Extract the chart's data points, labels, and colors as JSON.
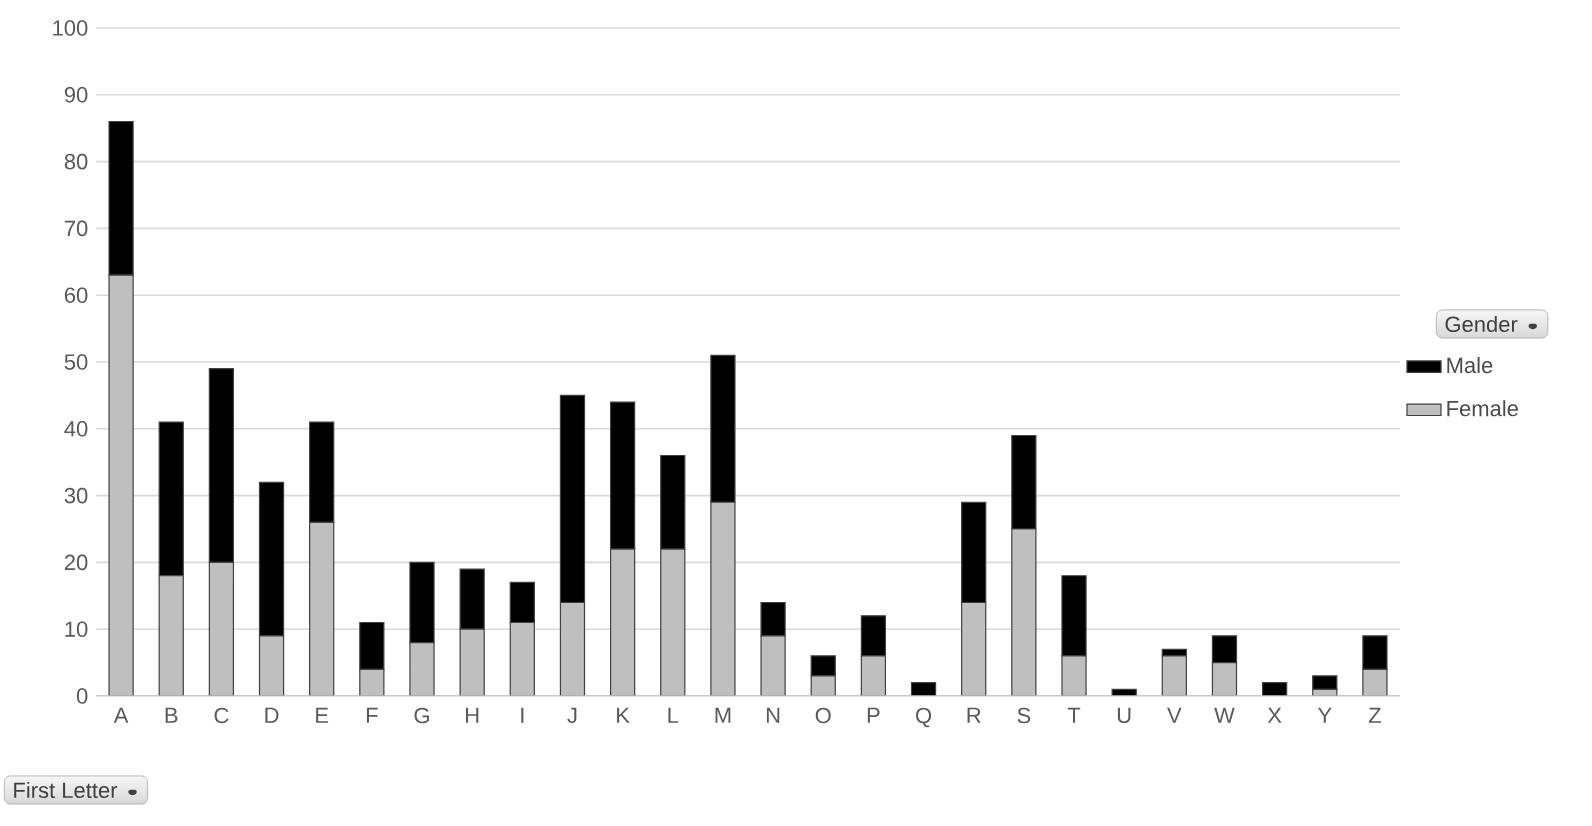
{
  "chart_data": {
    "type": "bar",
    "stacked": true,
    "annotations": [
      "First Letter"
    ],
    "legend_title": "Gender",
    "legend": "right",
    "grid": "y",
    "categories": [
      "A",
      "B",
      "C",
      "D",
      "E",
      "F",
      "G",
      "H",
      "I",
      "J",
      "K",
      "L",
      "M",
      "N",
      "O",
      "P",
      "Q",
      "R",
      "S",
      "T",
      "U",
      "V",
      "W",
      "X",
      "Y",
      "Z"
    ],
    "series": [
      {
        "name": "Female",
        "color": "#bfbfbf",
        "values": [
          63,
          18,
          20,
          9,
          26,
          4,
          8,
          10,
          11,
          14,
          22,
          22,
          29,
          9,
          3,
          6,
          0,
          14,
          25,
          6,
          0,
          6,
          5,
          0,
          1,
          4
        ]
      },
      {
        "name": "Male",
        "color": "#000000",
        "values": [
          23,
          23,
          29,
          23,
          15,
          7,
          12,
          9,
          6,
          31,
          22,
          14,
          22,
          5,
          3,
          6,
          2,
          15,
          14,
          12,
          1,
          1,
          4,
          2,
          2,
          5
        ]
      }
    ],
    "ylim": [
      0,
      100
    ],
    "yticks": [
      0,
      10,
      20,
      30,
      40,
      50,
      60,
      70,
      80,
      90,
      100
    ]
  }
}
